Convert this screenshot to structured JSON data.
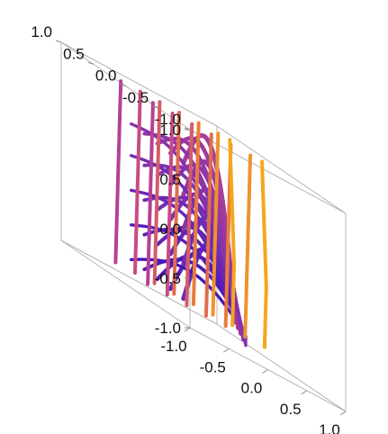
{
  "chart_data": {
    "type": "line",
    "dimension": "3d",
    "description_of_marks": "streamlines of a 3D vector field",
    "axes": {
      "x": {
        "ticks": [
          -1.0,
          -0.5,
          0.0,
          0.5,
          1.0
        ],
        "tick_labels": [
          "-1.0",
          "-0.5",
          "0.0",
          "0.5",
          "1.0"
        ],
        "range": [
          -1,
          1
        ]
      },
      "y": {
        "ticks": [
          -1.0,
          -0.5,
          0.0,
          0.5,
          1.0
        ],
        "tick_labels": [
          "-1.0",
          "-0.5",
          "0.0",
          "0.5",
          "1.0"
        ],
        "range": [
          -1,
          1
        ]
      },
      "z": {
        "ticks": [
          -1.0,
          -0.5,
          0.0,
          0.5,
          1.0
        ],
        "tick_labels": [
          "-1.0",
          "-0.5",
          "0.0",
          "0.5",
          "1.0"
        ],
        "range": [
          -1,
          1
        ]
      }
    },
    "colors": {
      "low": "#3a0fbf",
      "mid_low": "#7a2fb0",
      "mid": "#c2468c",
      "mid_high": "#e8753f",
      "high": "#f7b414",
      "box": "#b4b4b4"
    },
    "grid": false,
    "legend": "none",
    "title": "",
    "xlabel": "",
    "ylabel": "",
    "zlabel": ""
  }
}
